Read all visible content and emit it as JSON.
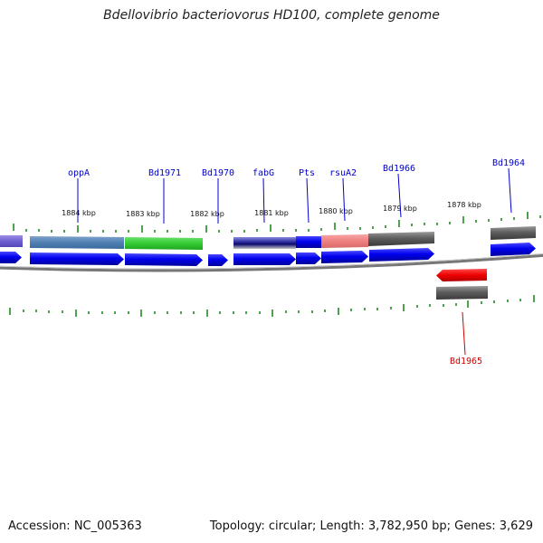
{
  "title": "Bdellovibrio bacteriovorus HD100, complete genome",
  "footer": {
    "accession": "Accession: NC_005363",
    "topology": "Topology: circular; Length: 3,782,950 bp; Genes: 3,629"
  },
  "colors": {
    "forward_cds": "#0000ee",
    "label_forward": "#0000cc",
    "label_reverse": "#cc0000",
    "ticks": "#228b22",
    "backbone": "#777777"
  },
  "kbp_labels": [
    "1884 kbp",
    "1883 kbp",
    "1882 kbp",
    "1881 kbp",
    "1880 kbp",
    "1879 kbp",
    "1878 kbp"
  ],
  "gene_labels": [
    {
      "name": "oppA",
      "strand": "forward"
    },
    {
      "name": "Bd1971",
      "strand": "forward"
    },
    {
      "name": "Bd1970",
      "strand": "forward"
    },
    {
      "name": "fabG",
      "strand": "forward"
    },
    {
      "name": "Pts",
      "strand": "forward"
    },
    {
      "name": "rsuA2",
      "strand": "forward"
    },
    {
      "name": "Bd1966",
      "strand": "forward"
    },
    {
      "name": "Bd1964",
      "strand": "forward"
    },
    {
      "name": "Bd1965",
      "strand": "reverse"
    }
  ]
}
